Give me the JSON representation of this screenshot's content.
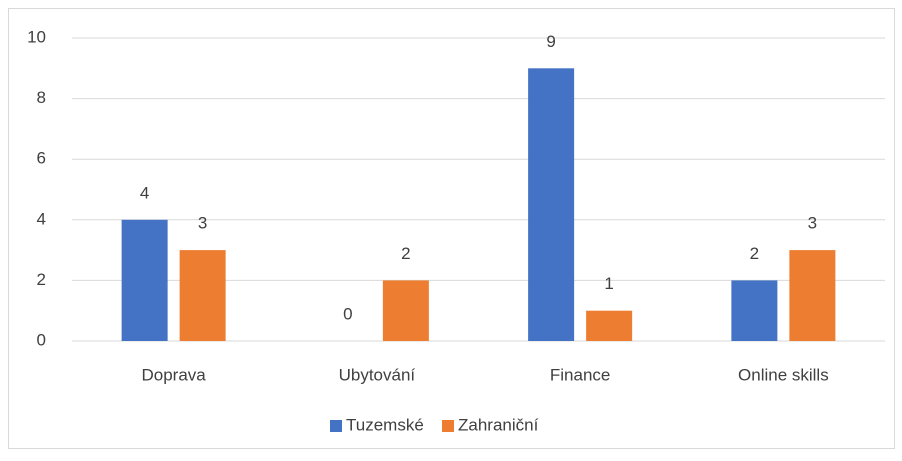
{
  "chart_data": {
    "type": "bar",
    "categories": [
      "Doprava",
      "Ubytování",
      "Finance",
      "Online skills"
    ],
    "series": [
      {
        "name": "Tuzemské",
        "color": "#4472c4",
        "values": [
          4,
          0,
          9,
          2
        ]
      },
      {
        "name": "Zahraniční",
        "color": "#ed7d31",
        "values": [
          3,
          2,
          1,
          3
        ]
      }
    ],
    "ylim": [
      0,
      10
    ],
    "yticks": [
      0,
      2,
      4,
      6,
      8,
      10
    ],
    "grid": true,
    "legend": "bottom"
  }
}
